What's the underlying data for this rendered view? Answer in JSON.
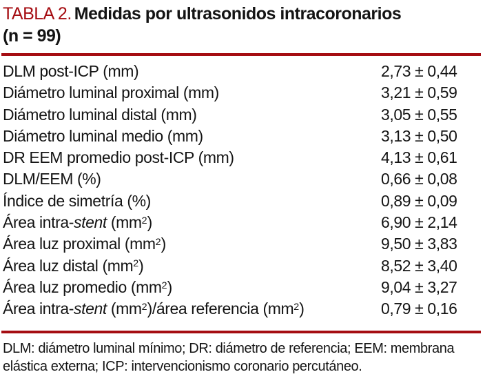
{
  "colors": {
    "accent_red": "#a50d12",
    "text": "#141414",
    "background": "#ffffff"
  },
  "title": {
    "number": "TABLA 2.",
    "caption": "Medidas por ultrasonidos intracoronarios",
    "sample_size": "(n = 99)"
  },
  "table": {
    "rows": [
      {
        "label": [
          {
            "t": "DLM post-ICP (mm)"
          }
        ],
        "value": "2,73 ± 0,44"
      },
      {
        "label": [
          {
            "t": "Diámetro luminal proximal (mm)"
          }
        ],
        "value": "3,21 ± 0,59"
      },
      {
        "label": [
          {
            "t": "Diámetro luminal distal (mm)"
          }
        ],
        "value": "3,05 ± 0,55"
      },
      {
        "label": [
          {
            "t": "Diámetro luminal medio (mm)"
          }
        ],
        "value": "3,13 ± 0,50"
      },
      {
        "label": [
          {
            "t": "DR EEM promedio post-ICP (mm)"
          }
        ],
        "value": "4,13 ± 0,61"
      },
      {
        "label": [
          {
            "t": "DLM/EEM (%)"
          }
        ],
        "value": "0,66 ± 0,08"
      },
      {
        "label": [
          {
            "t": "Índice de simetría (%)"
          }
        ],
        "value": "0,89 ± 0,09"
      },
      {
        "label": [
          {
            "t": "Área intra-"
          },
          {
            "t": "stent",
            "style": "italic"
          },
          {
            "t": " (mm"
          },
          {
            "t": "2",
            "style": "sup"
          },
          {
            "t": ")"
          }
        ],
        "value": "6,90 ± 2,14"
      },
      {
        "label": [
          {
            "t": "Área luz proximal (mm"
          },
          {
            "t": "2",
            "style": "sup"
          },
          {
            "t": ")"
          }
        ],
        "value": "9,50 ± 3,83"
      },
      {
        "label": [
          {
            "t": "Área luz distal (mm"
          },
          {
            "t": "2",
            "style": "sup"
          },
          {
            "t": ")"
          }
        ],
        "value": "8,52 ± 3,40"
      },
      {
        "label": [
          {
            "t": "Área luz promedio (mm"
          },
          {
            "t": "2",
            "style": "sup"
          },
          {
            "t": ")"
          }
        ],
        "value": "9,04 ± 3,27"
      },
      {
        "label": [
          {
            "t": "Área intra-"
          },
          {
            "t": "stent",
            "style": "italic"
          },
          {
            "t": " (mm"
          },
          {
            "t": "2",
            "style": "sup"
          },
          {
            "t": ")/área referencia (mm"
          },
          {
            "t": "2",
            "style": "sup"
          },
          {
            "t": ")"
          }
        ],
        "value": "0,79 ± 0,16"
      }
    ]
  },
  "footnote": {
    "lines": [
      "DLM: diámetro luminal mínimo; DR: diámetro de referencia; EEM: membrana",
      "elástica externa; ICP: intervencionismo coronario percutáneo."
    ]
  }
}
